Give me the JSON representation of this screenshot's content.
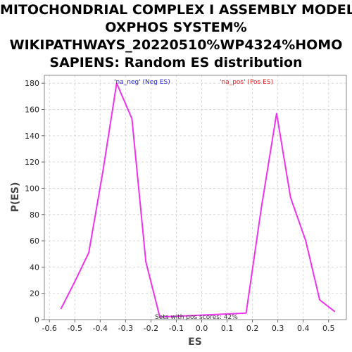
{
  "chart_data": {
    "type": "line",
    "title_lines": [
      "MITOCHONDRIAL COMPLEX I ASSEMBLY MODEL",
      "OXPHOS SYSTEM%",
      "WIKIPATHWAYS_20220510%WP4324%HOMO",
      "SAPIENS: Random ES distribution"
    ],
    "xlabel": "ES",
    "ylabel": "P(ES)",
    "xlim": [
      -0.62,
      0.57
    ],
    "ylim": [
      0,
      186
    ],
    "xticks": [
      -0.6,
      -0.5,
      -0.4,
      -0.3,
      -0.2,
      -0.1,
      0.0,
      0.1,
      0.2,
      0.3,
      0.4,
      0.5
    ],
    "xtick_labels": [
      "-0.6",
      "-0.5",
      "-0.4",
      "-0.3",
      "-0.2",
      "-0.1",
      "0.0",
      "0.1",
      "0.2",
      "0.3",
      "0.4",
      "0.5"
    ],
    "yticks": [
      0,
      20,
      40,
      60,
      80,
      100,
      120,
      140,
      160,
      180
    ],
    "ytick_labels": [
      "0",
      "20",
      "40",
      "60",
      "80",
      "100",
      "120",
      "140",
      "160",
      "180"
    ],
    "grid": true,
    "line_color": "#ee33ee",
    "legend": [
      {
        "label": "'na_neg' (Neg ES)",
        "color": "#2222cc"
      },
      {
        "label": "'na_pos' (Pos ES)",
        "color": "#dd2222"
      }
    ],
    "annotation": "Sets with pos scores: 42%",
    "series": [
      {
        "x": [
          -0.555,
          -0.5,
          -0.445,
          -0.39,
          -0.335,
          -0.275,
          -0.22,
          -0.165,
          0.175,
          0.235,
          0.295,
          0.35,
          0.41,
          0.465,
          0.525
        ],
        "y": [
          8,
          29,
          51,
          112,
          180,
          153,
          44,
          2,
          5,
          85,
          157,
          93,
          60,
          15,
          6
        ]
      }
    ]
  }
}
